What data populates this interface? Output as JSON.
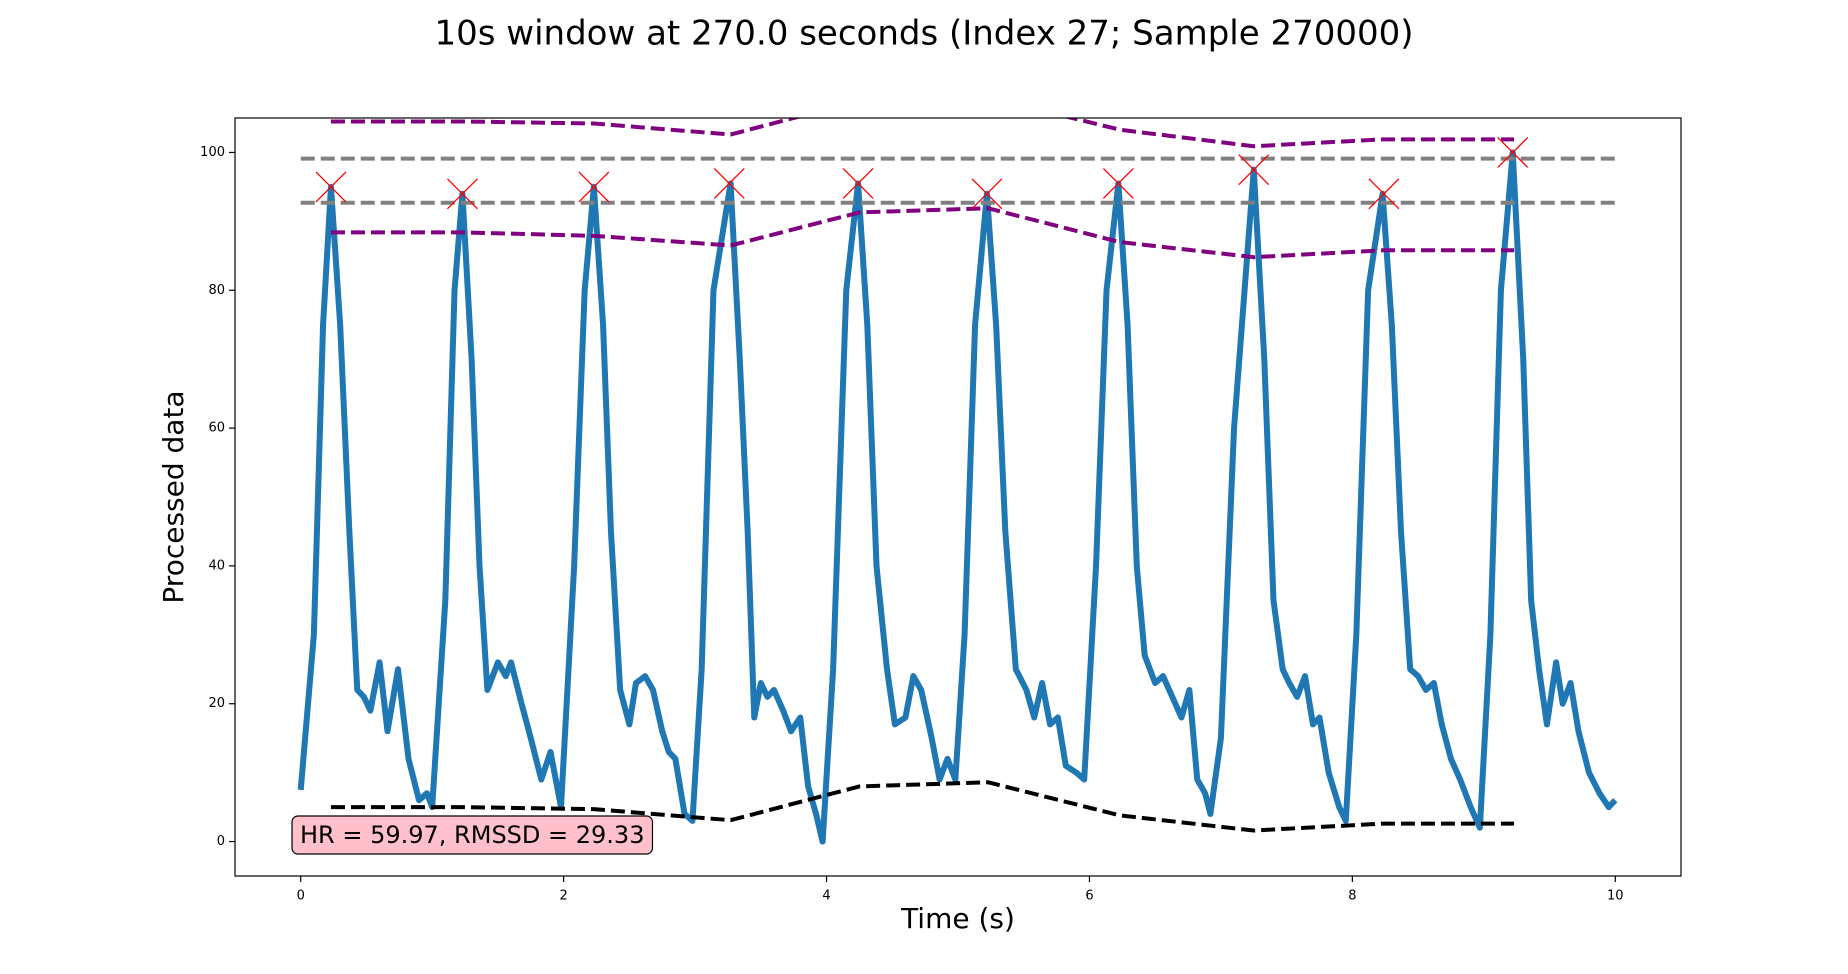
{
  "chart_data": {
    "type": "line",
    "title": "10s window at 270.0 seconds (Index 27; Sample 270000)",
    "xlabel": "Time (s)",
    "ylabel": "Processed data",
    "annotation": "HR = 59.97, RMSSD = 29.33",
    "xlim": [
      -0.5,
      10.5
    ],
    "ylim": [
      -5,
      105
    ],
    "xticks": [
      0,
      2,
      4,
      6,
      8,
      10
    ],
    "yticks": [
      0,
      20,
      40,
      60,
      80,
      100
    ],
    "series": [
      {
        "color": "#1f77b4",
        "linestyle": "solid",
        "linewidth": 6,
        "x": [
          0,
          0.1,
          0.17,
          0.23,
          0.3,
          0.37,
          0.43,
          0.48,
          0.53,
          0.6,
          0.66,
          0.74,
          0.82,
          0.9,
          0.96,
          1.0,
          1.1,
          1.17,
          1.23,
          1.3,
          1.36,
          1.42,
          1.5,
          1.56,
          1.6,
          1.68,
          1.75,
          1.83,
          1.9,
          1.98,
          2.08,
          2.16,
          2.23,
          2.3,
          2.36,
          2.43,
          2.5,
          2.55,
          2.62,
          2.68,
          2.75,
          2.8,
          2.85,
          2.92,
          2.98,
          3.05,
          3.14,
          3.27,
          3.34,
          3.4,
          3.45,
          3.5,
          3.55,
          3.6,
          3.67,
          3.73,
          3.8,
          3.86,
          3.92,
          3.97,
          4.05,
          4.15,
          4.24,
          4.31,
          4.38,
          4.46,
          4.52,
          4.6,
          4.66,
          4.72,
          4.8,
          4.86,
          4.92,
          4.98,
          5.05,
          5.13,
          5.22,
          5.29,
          5.36,
          5.44,
          5.52,
          5.58,
          5.64,
          5.7,
          5.76,
          5.82,
          5.9,
          5.96,
          6.05,
          6.13,
          6.22,
          6.29,
          6.36,
          6.42,
          6.5,
          6.56,
          6.63,
          6.7,
          6.76,
          6.82,
          6.88,
          6.92,
          7.0,
          7.1,
          7.25,
          7.33,
          7.4,
          7.47,
          7.52,
          7.58,
          7.64,
          7.7,
          7.75,
          7.82,
          7.9,
          7.95,
          8.03,
          8.12,
          8.23,
          8.3,
          8.37,
          8.44,
          8.5,
          8.56,
          8.62,
          8.68,
          8.75,
          8.82,
          8.9,
          8.97,
          9.05,
          9.13,
          9.22,
          9.3,
          9.36,
          9.42,
          9.48,
          9.55,
          9.6,
          9.66,
          9.72,
          9.8,
          9.88,
          9.95,
          10.0
        ],
        "values": [
          7.5,
          30,
          75,
          95,
          75,
          45,
          22,
          21,
          19,
          26,
          16,
          25,
          12,
          6,
          7,
          5,
          35,
          80,
          94,
          70,
          40,
          22,
          26,
          24,
          26,
          20,
          15,
          9,
          13,
          5,
          40,
          80,
          95,
          75,
          45,
          22,
          17,
          23,
          24,
          22,
          16,
          13,
          12,
          4,
          3,
          25,
          80,
          95.5,
          70,
          45,
          18,
          23,
          21,
          22,
          19,
          16,
          18,
          8,
          4,
          0,
          25,
          80,
          95.5,
          75,
          40,
          25,
          17,
          18,
          24,
          22,
          15,
          9,
          12,
          9,
          30,
          75,
          94,
          75,
          45,
          25,
          22,
          18,
          23,
          17,
          18,
          11,
          10,
          9,
          40,
          80,
          95.5,
          75,
          40,
          27,
          23,
          24,
          21,
          18,
          22,
          9,
          7,
          4,
          15,
          60,
          97.5,
          70,
          35,
          25,
          23,
          21,
          24,
          17,
          18,
          10,
          5,
          3,
          30,
          80,
          94,
          75,
          45,
          25,
          24,
          22,
          23,
          17,
          12,
          9,
          5,
          2,
          30,
          80,
          100,
          70,
          35,
          25,
          17,
          26,
          20,
          23,
          16,
          10,
          7,
          5,
          6
        ]
      },
      {
        "color": "#808080",
        "linestyle": "dashed",
        "linewidth": 4,
        "x": [
          0,
          10
        ],
        "values": [
          99.1,
          99.1
        ]
      },
      {
        "color": "#808080",
        "linestyle": "dashed",
        "linewidth": 4,
        "x": [
          0,
          10
        ],
        "values": [
          92.7,
          92.7
        ]
      },
      {
        "color": "#800080",
        "linestyle": "dashed",
        "linewidth": 4,
        "x": [
          0.23,
          1.23,
          2.23,
          3.27,
          4.25,
          5.23,
          6.23,
          7.25,
          8.23,
          9.23
        ],
        "values": [
          104.5,
          104.5,
          104.2,
          102.6,
          107.5,
          108,
          103.3,
          100.9,
          101.9,
          101.9
        ]
      },
      {
        "color": "#800080",
        "linestyle": "dashed",
        "linewidth": 4,
        "x": [
          0.23,
          1.23,
          2.23,
          3.27,
          4.25,
          5.23,
          6.23,
          7.25,
          8.23,
          9.23
        ],
        "values": [
          88.4,
          88.4,
          87.9,
          86.5,
          91.3,
          91.9,
          87.0,
          84.8,
          85.8,
          85.8
        ]
      },
      {
        "color": "#000000",
        "linestyle": "dashed",
        "linewidth": 4,
        "x": [
          0.23,
          1.23,
          2.23,
          3.27,
          4.25,
          5.23,
          6.23,
          7.25,
          8.23,
          9.23
        ],
        "values": [
          5.0,
          5.0,
          4.7,
          3.1,
          8.0,
          8.6,
          3.8,
          1.6,
          2.6,
          2.6
        ]
      },
      {
        "color": "#ff0000",
        "linestyle": "none",
        "marker": "x",
        "x": [
          0.23,
          1.23,
          2.23,
          3.26,
          4.24,
          5.22,
          6.22,
          7.25,
          8.24,
          9.22
        ],
        "values": [
          95,
          94,
          95,
          95.5,
          95.5,
          94,
          95.5,
          97.5,
          94,
          100
        ]
      }
    ]
  }
}
